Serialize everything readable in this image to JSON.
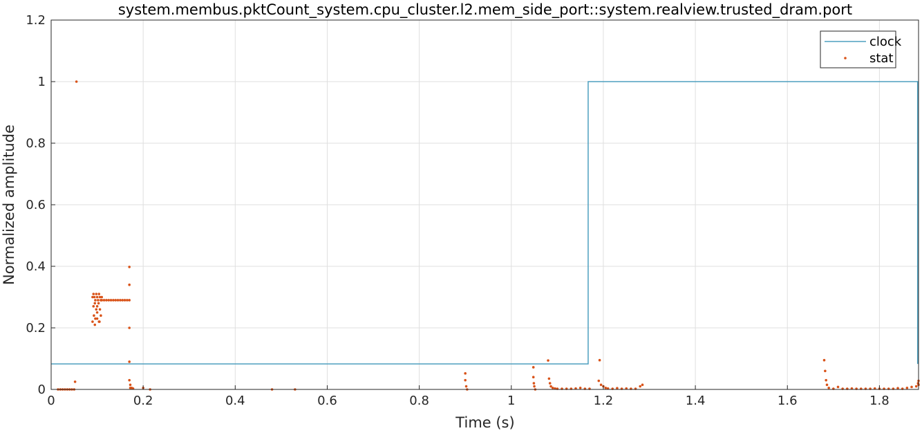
{
  "chart_data": {
    "type": "line",
    "title": "system.membus.pktCount_system.cpu_cluster.l2.mem_side_port::system.realview.trusted_dram.port",
    "xlabel": "Time (s)",
    "ylabel": "Normalized amplitude",
    "xlim": [
      0,
      1.885
    ],
    "ylim": [
      0,
      1.2
    ],
    "xticks": [
      0,
      0.2,
      0.4,
      0.6,
      0.8,
      1,
      1.2,
      1.4,
      1.6,
      1.8
    ],
    "xtick_labels": [
      "0",
      "0.2",
      "0.4",
      "0.6",
      "0.8",
      "1",
      "1.2",
      "1.4",
      "1.6",
      "1.8"
    ],
    "yticks": [
      0,
      0.2,
      0.4,
      0.6,
      0.8,
      1,
      1.2
    ],
    "ytick_labels": [
      "0",
      "0.2",
      "0.4",
      "0.6",
      "0.8",
      "1",
      "1.2"
    ],
    "grid": true,
    "legend_position": "top-right",
    "series": [
      {
        "name": "clock",
        "style": "line",
        "color": "#4d9fbf",
        "x": [
          0,
          1.167,
          1.167,
          1.883,
          1.883
        ],
        "y": [
          0.083,
          0.083,
          1.0,
          1.0,
          0.083
        ]
      },
      {
        "name": "stat",
        "style": "markers",
        "color": "#d95319",
        "x": [
          0.015,
          0.02,
          0.025,
          0.03,
          0.035,
          0.04,
          0.045,
          0.05,
          0.052,
          0.055,
          0.09,
          0.092,
          0.094,
          0.096,
          0.098,
          0.1,
          0.102,
          0.104,
          0.106,
          0.108,
          0.11,
          0.092,
          0.095,
          0.098,
          0.1,
          0.103,
          0.106,
          0.09,
          0.093,
          0.096,
          0.1,
          0.104,
          0.108,
          0.095,
          0.1,
          0.105,
          0.11,
          0.115,
          0.12,
          0.125,
          0.13,
          0.135,
          0.14,
          0.145,
          0.15,
          0.155,
          0.16,
          0.165,
          0.17,
          0.17,
          0.17,
          0.17,
          0.17,
          0.17,
          0.172,
          0.172,
          0.175,
          0.178,
          0.2,
          0.215,
          0.48,
          0.53,
          0.9,
          0.9,
          0.902,
          0.904,
          1.048,
          1.048,
          1.049,
          1.05,
          1.052,
          1.08,
          1.082,
          1.084,
          1.086,
          1.09,
          1.095,
          1.1,
          1.11,
          1.12,
          1.13,
          1.14,
          1.15,
          1.16,
          1.17,
          1.19,
          1.192,
          1.195,
          1.2,
          1.205,
          1.21,
          1.22,
          1.23,
          1.24,
          1.25,
          1.26,
          1.27,
          1.28,
          1.285,
          1.68,
          1.682,
          1.684,
          1.686,
          1.69,
          1.7,
          1.71,
          1.72,
          1.73,
          1.74,
          1.75,
          1.76,
          1.77,
          1.78,
          1.79,
          1.8,
          1.81,
          1.82,
          1.83,
          1.84,
          1.85,
          1.86,
          1.87,
          1.88,
          1.885,
          1.885,
          1.884
        ],
        "y": [
          0.0,
          0.0,
          0.0,
          0.0,
          0.0,
          0.0,
          0.0,
          0.0,
          0.025,
          1.0,
          0.3,
          0.31,
          0.3,
          0.29,
          0.31,
          0.3,
          0.29,
          0.31,
          0.3,
          0.29,
          0.3,
          0.27,
          0.28,
          0.26,
          0.27,
          0.28,
          0.26,
          0.22,
          0.24,
          0.23,
          0.25,
          0.22,
          0.24,
          0.21,
          0.23,
          0.22,
          0.29,
          0.29,
          0.29,
          0.29,
          0.29,
          0.29,
          0.29,
          0.29,
          0.29,
          0.29,
          0.29,
          0.29,
          0.29,
          0.398,
          0.34,
          0.2,
          0.09,
          0.03,
          0.015,
          0.005,
          0.005,
          0.003,
          0.005,
          0.0,
          0.0,
          0.0,
          0.052,
          0.03,
          0.01,
          0.0,
          0.072,
          0.04,
          0.02,
          0.01,
          0.0,
          0.094,
          0.035,
          0.02,
          0.01,
          0.005,
          0.003,
          0.002,
          0.002,
          0.002,
          0.002,
          0.003,
          0.005,
          0.002,
          0.002,
          0.028,
          0.095,
          0.015,
          0.01,
          0.005,
          0.003,
          0.002,
          0.004,
          0.002,
          0.003,
          0.002,
          0.002,
          0.01,
          0.015,
          0.095,
          0.06,
          0.03,
          0.015,
          0.005,
          0.002,
          0.008,
          0.002,
          0.002,
          0.003,
          0.002,
          0.002,
          0.002,
          0.002,
          0.003,
          0.002,
          0.002,
          0.002,
          0.002,
          0.004,
          0.002,
          0.005,
          0.008,
          0.01,
          0.015,
          0.028,
          0.02
        ]
      }
    ]
  }
}
